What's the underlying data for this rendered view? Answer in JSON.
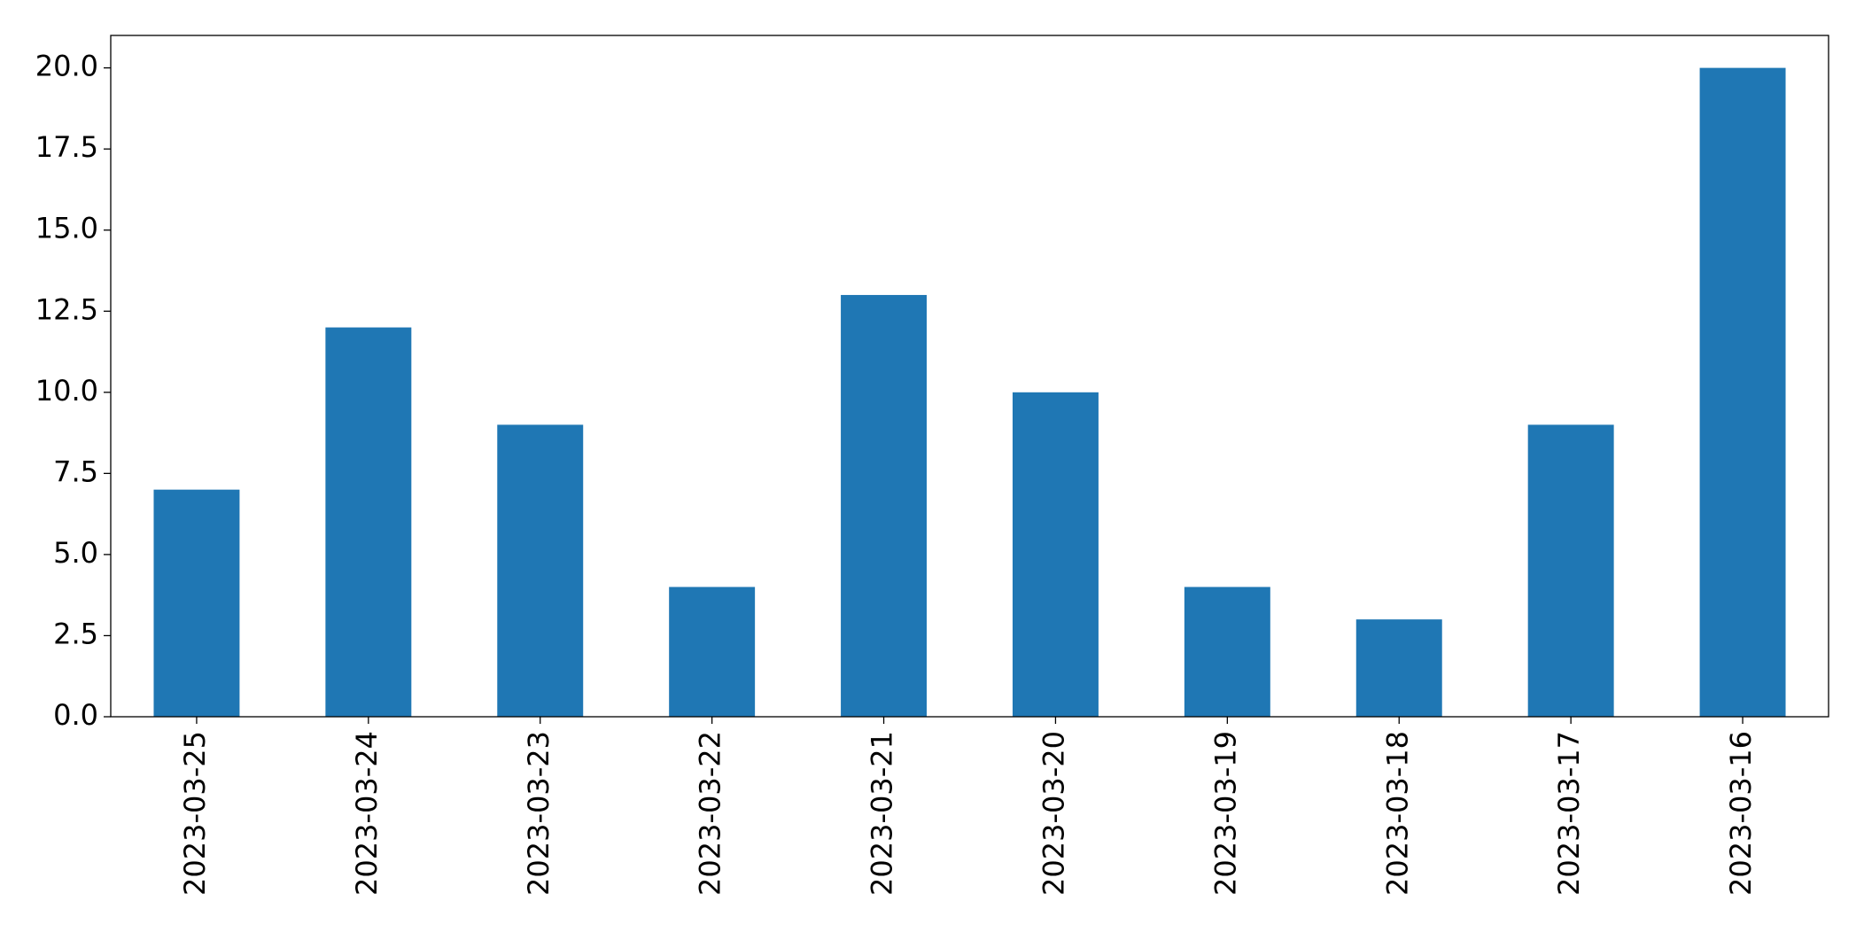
{
  "chart_data": {
    "type": "bar",
    "categories": [
      "2023-03-25",
      "2023-03-24",
      "2023-03-23",
      "2023-03-22",
      "2023-03-21",
      "2023-03-20",
      "2023-03-19",
      "2023-03-18",
      "2023-03-17",
      "2023-03-16"
    ],
    "values": [
      7,
      12,
      9,
      4,
      13,
      10,
      4,
      3,
      9,
      20
    ],
    "color": "#1f77b4",
    "ylim": [
      0,
      21
    ],
    "yticks": [
      {
        "value": 0,
        "label": "0.0"
      },
      2.5,
      {
        "value": 5,
        "label": "5.0"
      },
      7.5,
      {
        "value": 10,
        "label": "10.0"
      },
      12.5,
      {
        "value": 15,
        "label": "15.0"
      },
      17.5,
      {
        "value": 20,
        "label": "20.0"
      }
    ],
    "grid": false
  }
}
